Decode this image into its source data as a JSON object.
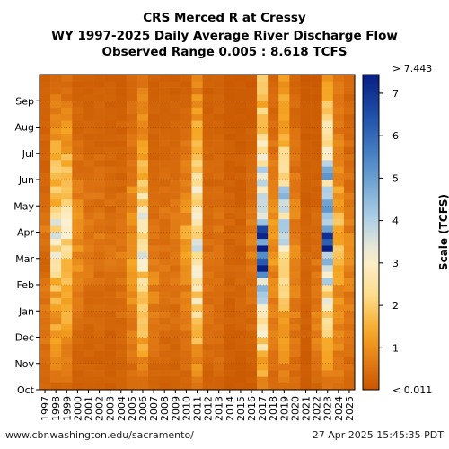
{
  "header": {
    "title_line1": "CRS Merced R at Cressy",
    "title_line2": "WY 1997-2025 Daily Average River Discharge Flow",
    "title_line3": "Observed Range 0.005 : 8.618 TCFS"
  },
  "footer": {
    "url": "www.cbr.washington.edu/sacramento/",
    "timestamp": "27 Apr 2025 15:45:35 PDT"
  },
  "colors": {
    "low": "#c85a00",
    "mid_low": "#f5a623",
    "mid": "#fde8a6",
    "mid_high": "#9ec8e6",
    "high": "#08288c",
    "missing": "#ffffff"
  },
  "chart_data": {
    "type": "heatmap",
    "x_label": "",
    "y_label": "",
    "x_categories": [
      "1997",
      "1998",
      "1999",
      "2000",
      "2001",
      "2002",
      "2003",
      "2004",
      "2005",
      "2006",
      "2007",
      "2008",
      "2009",
      "2010",
      "2011",
      "2012",
      "2013",
      "2014",
      "2015",
      "2016",
      "2017",
      "2018",
      "2019",
      "2020",
      "2021",
      "2022",
      "2023",
      "2024",
      "2025"
    ],
    "y_categories": [
      "Oct",
      "Nov",
      "Dec",
      "Jan",
      "Feb",
      "Mar",
      "Apr",
      "May",
      "Jun",
      "Jul",
      "Aug",
      "Sep"
    ],
    "colorbar": {
      "label": "Scale (TCFS)",
      "min": 0.011,
      "max": 7.443,
      "top_label": "> 7.443",
      "bottom_label": "< 0.011",
      "ticks": [
        "1",
        "2",
        "3",
        "4",
        "5",
        "6",
        "7"
      ]
    },
    "monthly_flow_tcfs": [
      [
        0.25,
        0.5,
        0.6,
        0.25,
        0.6,
        0.3,
        0.25,
        0.25
      ],
      [
        0.3,
        1.2,
        1.5,
        2.5,
        3.0,
        2.0,
        1.5,
        0.4
      ],
      [
        0.3,
        1.0,
        1.8,
        2.0,
        2.5,
        2.5,
        1.5,
        0.4
      ],
      [
        0.2,
        0.3,
        0.7,
        1.0,
        1.0,
        0.8,
        0.5,
        0.2
      ],
      [
        0.2,
        0.3,
        0.5,
        0.6,
        0.7,
        0.6,
        0.4,
        0.2
      ],
      [
        0.2,
        0.3,
        0.4,
        0.5,
        0.6,
        0.5,
        0.4,
        0.2
      ],
      [
        0.2,
        0.2,
        0.4,
        0.5,
        0.5,
        0.4,
        0.3,
        0.2
      ],
      [
        0.2,
        0.3,
        0.5,
        0.8,
        0.6,
        0.4,
        0.3,
        0.2
      ],
      [
        0.3,
        0.6,
        1.0,
        1.5,
        1.2,
        1.0,
        0.6,
        0.3
      ],
      [
        0.4,
        1.5,
        2.0,
        3.0,
        3.2,
        2.5,
        1.5,
        0.6
      ],
      [
        0.2,
        0.5,
        0.8,
        0.7,
        0.5,
        0.4,
        0.3,
        0.2
      ],
      [
        0.2,
        0.4,
        0.5,
        0.6,
        0.5,
        0.5,
        0.3,
        0.2
      ],
      [
        0.2,
        0.4,
        0.5,
        0.6,
        0.6,
        0.5,
        0.3,
        0.2
      ],
      [
        0.2,
        0.5,
        0.8,
        1.0,
        1.2,
        1.0,
        0.6,
        0.2
      ],
      [
        0.5,
        1.5,
        2.5,
        3.0,
        3.0,
        2.8,
        1.8,
        0.8
      ],
      [
        0.2,
        0.4,
        0.5,
        0.5,
        0.5,
        0.4,
        0.3,
        0.2
      ],
      [
        0.2,
        0.5,
        0.5,
        0.5,
        0.5,
        0.4,
        0.3,
        0.2
      ],
      [
        0.1,
        0.2,
        0.3,
        0.3,
        0.3,
        0.3,
        0.2,
        0.1
      ],
      [
        0.1,
        0.2,
        0.3,
        0.3,
        0.3,
        0.2,
        0.2,
        0.1
      ],
      [
        0.1,
        0.3,
        0.5,
        0.6,
        0.6,
        0.5,
        0.3,
        0.1
      ],
      [
        0.8,
        2.5,
        4.0,
        7.5,
        5.5,
        4.5,
        3.0,
        1.5
      ],
      [
        0.3,
        0.6,
        0.8,
        1.0,
        1.0,
        1.0,
        0.6,
        0.3
      ],
      [
        0.4,
        1.2,
        2.0,
        3.0,
        4.0,
        4.0,
        2.5,
        1.0
      ],
      [
        0.3,
        0.6,
        0.8,
        0.8,
        0.8,
        0.7,
        0.5,
        0.3
      ],
      [
        0.1,
        0.2,
        0.3,
        0.3,
        0.3,
        0.2,
        0.2,
        0.1
      ],
      [
        0.2,
        0.8,
        0.5,
        0.5,
        0.4,
        0.3,
        0.2,
        0.1
      ],
      [
        0.5,
        1.5,
        3.0,
        5.5,
        6.0,
        5.0,
        3.5,
        1.5
      ],
      [
        0.5,
        0.8,
        1.2,
        1.5,
        1.5,
        1.4,
        0.8,
        0.5
      ],
      [
        0.3,
        0.5,
        0.7,
        0.8,
        0.8,
        0.6,
        0.4,
        0.3
      ]
    ]
  }
}
